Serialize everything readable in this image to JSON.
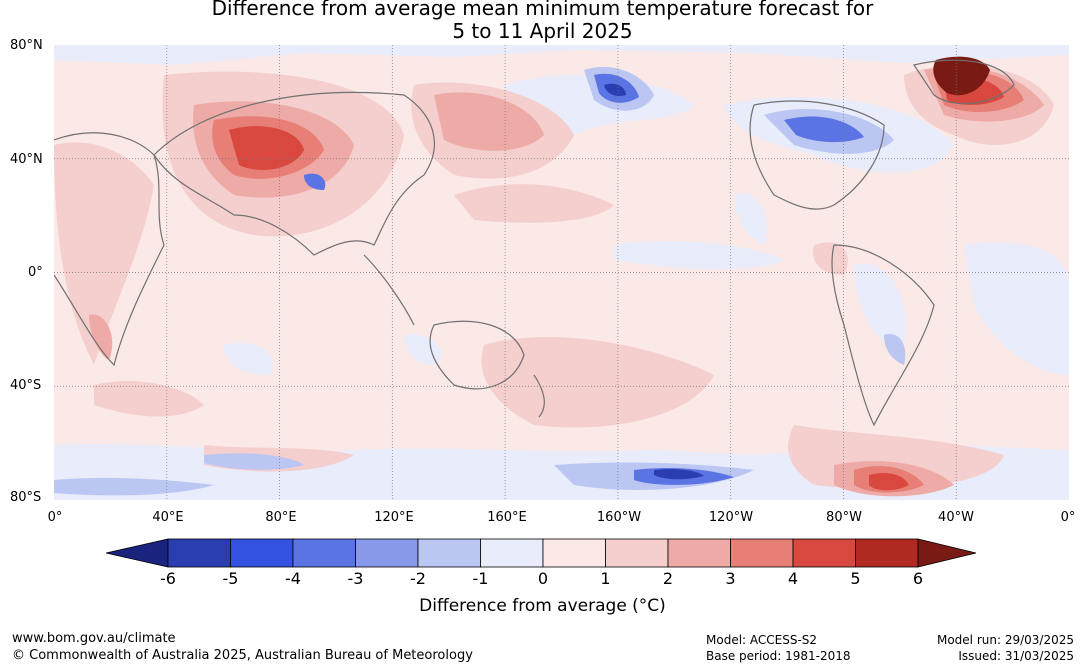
{
  "title_line1": "Difference from average mean minimum temperature forecast for",
  "title_line2": "5 to 11 April 2025",
  "lat_labels": [
    "80°N",
    "40°N",
    "0°",
    "40°S",
    "80°S"
  ],
  "lon_labels": [
    "0°",
    "40°E",
    "80°E",
    "120°E",
    "160°E",
    "160°W",
    "120°W",
    "80°W",
    "40°W",
    "0°"
  ],
  "colorbar": {
    "ticks": [
      "-6",
      "-5",
      "-4",
      "-3",
      "-2",
      "-1",
      "0",
      "1",
      "2",
      "3",
      "4",
      "5",
      "6"
    ],
    "colors": [
      "#1a237e",
      "#2a3eb1",
      "#3452e0",
      "#5b74e3",
      "#8799e8",
      "#bcc6f3",
      "#e8ecfb",
      "#fbe9e8",
      "#f4cfcd",
      "#eeaaa6",
      "#e77f77",
      "#d9483e",
      "#b02a22",
      "#7a1a14"
    ],
    "title": "Difference from average (°C)"
  },
  "footer": {
    "url": "www.bom.gov.au/climate",
    "copyright": "© Commonwealth of Australia 2025, Australian Bureau of Meteorology",
    "model": "Model: ACCESS-S2",
    "base_period": "Base period: 1981-2018",
    "model_run": "Model run: 29/03/2025",
    "issued": "Issued: 31/03/2025"
  }
}
